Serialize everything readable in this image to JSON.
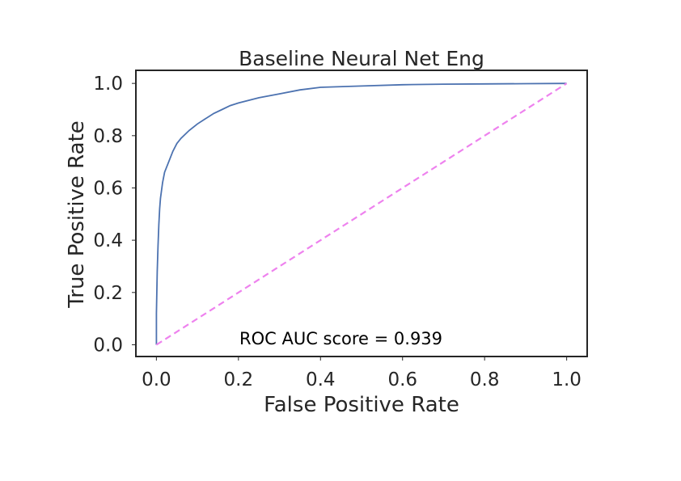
{
  "chart_data": {
    "type": "line",
    "title": "Baseline Neural Net Eng",
    "xlabel": "False Positive Rate",
    "ylabel": "True Positive Rate",
    "xlim": [
      -0.05,
      1.05
    ],
    "ylim": [
      -0.045,
      1.05
    ],
    "xticks": [
      "0.0",
      "0.2",
      "0.4",
      "0.6",
      "0.8",
      "1.0"
    ],
    "yticks": [
      "0.0",
      "0.2",
      "0.4",
      "0.6",
      "0.8",
      "1.0"
    ],
    "grid": false,
    "annotation": "ROC AUC score = 0.939",
    "series": [
      {
        "color": "#4c72b0",
        "style": "solid",
        "x": [
          0,
          0.0,
          0.002,
          0.004,
          0.006,
          0.008,
          0.01,
          0.015,
          0.02,
          0.03,
          0.04,
          0.05,
          0.06,
          0.08,
          0.1,
          0.12,
          0.14,
          0.16,
          0.18,
          0.2,
          0.25,
          0.3,
          0.35,
          0.4,
          0.5,
          0.6,
          0.7,
          0.8,
          0.9,
          1.0
        ],
        "y": [
          0,
          0.12,
          0.28,
          0.38,
          0.46,
          0.52,
          0.56,
          0.62,
          0.66,
          0.7,
          0.74,
          0.77,
          0.79,
          0.82,
          0.845,
          0.865,
          0.885,
          0.9,
          0.915,
          0.925,
          0.945,
          0.96,
          0.975,
          0.985,
          0.99,
          0.995,
          0.997,
          0.998,
          0.999,
          1.0
        ]
      },
      {
        "color": "#ee82ee",
        "style": "dashed",
        "x": [
          0,
          1
        ],
        "y": [
          0,
          1
        ]
      }
    ]
  }
}
